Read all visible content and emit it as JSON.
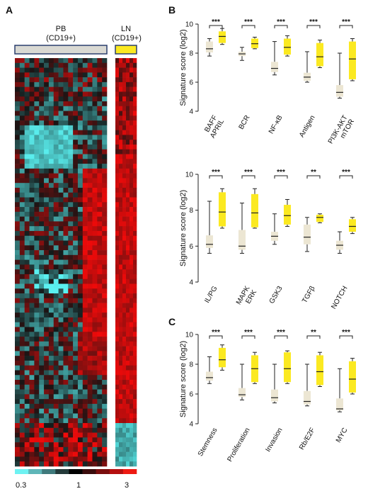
{
  "panel_letters": {
    "a": "A",
    "b": "B",
    "c": "C"
  },
  "heatmap": {
    "groups": [
      {
        "name": "PB",
        "sub": "(CD19+)",
        "bar_color": "#d9d9d3"
      },
      {
        "name": "LN",
        "sub": "(CD19+)",
        "bar_color": "#fbe921"
      }
    ],
    "scale": {
      "min_label": "0.3",
      "mid_label": "1",
      "max_label": "3",
      "colors": [
        "#6ef2f2",
        "#5fb6b8",
        "#3f7a7c",
        "#243a3a",
        "#000000",
        "#3a0c0c",
        "#7a0d0d",
        "#b50f0f",
        "#ee1a12"
      ]
    }
  },
  "chart_data": [
    {
      "type": "boxplot",
      "panel": "B",
      "ylabel": "Signature score (log2)",
      "ylim": [
        4,
        10
      ],
      "yticks": [
        "4",
        "6",
        "8",
        "10"
      ],
      "categories": [
        "BAFF APRIL",
        "BCR",
        "NF-κB",
        "Antigen",
        "PI3K-AKT mTOR"
      ],
      "significance": [
        "***",
        "***",
        "***",
        "***",
        "***"
      ],
      "series": [
        {
          "color": "#ece6d3",
          "boxes": [
            {
              "min": 7.8,
              "q1": 8.05,
              "median": 8.3,
              "q3": 8.8,
              "max": 9.0
            },
            {
              "min": 7.5,
              "q1": 7.8,
              "median": 7.95,
              "q3": 8.1,
              "max": 8.4
            },
            {
              "min": 6.5,
              "q1": 6.7,
              "median": 6.95,
              "q3": 7.4,
              "max": 8.8
            },
            {
              "min": 6.0,
              "q1": 6.1,
              "median": 6.35,
              "q3": 6.65,
              "max": 8.1
            },
            {
              "min": 4.9,
              "q1": 5.0,
              "median": 5.3,
              "q3": 5.8,
              "max": 8.0
            }
          ]
        },
        {
          "color": "#fbe921",
          "boxes": [
            {
              "min": 8.6,
              "q1": 8.7,
              "median": 9.15,
              "q3": 9.5,
              "max": 9.7
            },
            {
              "min": 8.3,
              "q1": 8.35,
              "median": 8.65,
              "q3": 9.0,
              "max": 9.1
            },
            {
              "min": 7.8,
              "q1": 7.9,
              "median": 8.4,
              "q3": 9.0,
              "max": 9.2
            },
            {
              "min": 7.0,
              "q1": 7.1,
              "median": 7.75,
              "q3": 8.7,
              "max": 8.9
            },
            {
              "min": 6.1,
              "q1": 6.2,
              "median": 7.6,
              "q3": 8.8,
              "max": 9.0
            }
          ]
        }
      ]
    },
    {
      "type": "boxplot",
      "panel": "B",
      "ylabel": "Signature score (log2)",
      "ylim": [
        4,
        10
      ],
      "yticks": [
        "4",
        "6",
        "8",
        "10"
      ],
      "categories": [
        "IL/PG",
        "MAPK ERK",
        "GSK3",
        "TGFβ",
        "NOTCH"
      ],
      "significance": [
        "***",
        "***",
        "***",
        "**",
        "***"
      ],
      "series": [
        {
          "color": "#ece6d3",
          "boxes": [
            {
              "min": 5.6,
              "q1": 5.9,
              "median": 6.1,
              "q3": 6.6,
              "max": 8.5
            },
            {
              "min": 5.6,
              "q1": 5.8,
              "median": 6.0,
              "q3": 6.9,
              "max": 8.4
            },
            {
              "min": 6.1,
              "q1": 6.3,
              "median": 6.55,
              "q3": 6.8,
              "max": 7.8
            },
            {
              "min": 5.7,
              "q1": 6.1,
              "median": 6.5,
              "q3": 7.2,
              "max": 7.6
            },
            {
              "min": 5.6,
              "q1": 5.8,
              "median": 6.05,
              "q3": 6.3,
              "max": 6.8
            }
          ]
        },
        {
          "color": "#fbe921",
          "boxes": [
            {
              "min": 7.0,
              "q1": 7.1,
              "median": 7.9,
              "q3": 9.0,
              "max": 9.2
            },
            {
              "min": 7.0,
              "q1": 7.05,
              "median": 7.85,
              "q3": 8.9,
              "max": 9.2
            },
            {
              "min": 7.1,
              "q1": 7.2,
              "median": 7.7,
              "q3": 8.3,
              "max": 8.6
            },
            {
              "min": 7.3,
              "q1": 7.35,
              "median": 7.6,
              "q3": 7.75,
              "max": 7.8
            },
            {
              "min": 6.7,
              "q1": 6.8,
              "median": 7.1,
              "q3": 7.5,
              "max": 7.6
            }
          ]
        }
      ]
    },
    {
      "type": "boxplot",
      "panel": "C",
      "ylabel": "Signature score (log2)",
      "ylim": [
        4,
        10
      ],
      "yticks": [
        "4",
        "6",
        "8",
        "10"
      ],
      "categories": [
        "Stemness",
        "Proliferation",
        "Invasion",
        "Rb/E2F",
        "MYC"
      ],
      "significance": [
        "***",
        "***",
        "***",
        "**",
        "***"
      ],
      "series": [
        {
          "color": "#ece6d3",
          "boxes": [
            {
              "min": 6.7,
              "q1": 6.9,
              "median": 7.1,
              "q3": 7.5,
              "max": 8.5
            },
            {
              "min": 5.6,
              "q1": 5.8,
              "median": 5.95,
              "q3": 6.4,
              "max": 8.0
            },
            {
              "min": 5.4,
              "q1": 5.5,
              "median": 5.75,
              "q3": 6.3,
              "max": 8.0
            },
            {
              "min": 5.2,
              "q1": 5.3,
              "median": 5.5,
              "q3": 6.2,
              "max": 8.0
            },
            {
              "min": 4.8,
              "q1": 4.9,
              "median": 5.0,
              "q3": 5.7,
              "max": 7.7
            }
          ]
        },
        {
          "color": "#fbe921",
          "boxes": [
            {
              "min": 7.6,
              "q1": 7.8,
              "median": 8.3,
              "q3": 9.1,
              "max": 9.3
            },
            {
              "min": 6.7,
              "q1": 6.8,
              "median": 7.7,
              "q3": 8.6,
              "max": 8.8
            },
            {
              "min": 6.7,
              "q1": 6.8,
              "median": 7.7,
              "q3": 8.8,
              "max": 8.9
            },
            {
              "min": 6.5,
              "q1": 6.6,
              "median": 7.5,
              "q3": 8.6,
              "max": 8.8
            },
            {
              "min": 6.0,
              "q1": 6.1,
              "median": 7.0,
              "q3": 8.2,
              "max": 8.4
            }
          ]
        }
      ]
    }
  ]
}
